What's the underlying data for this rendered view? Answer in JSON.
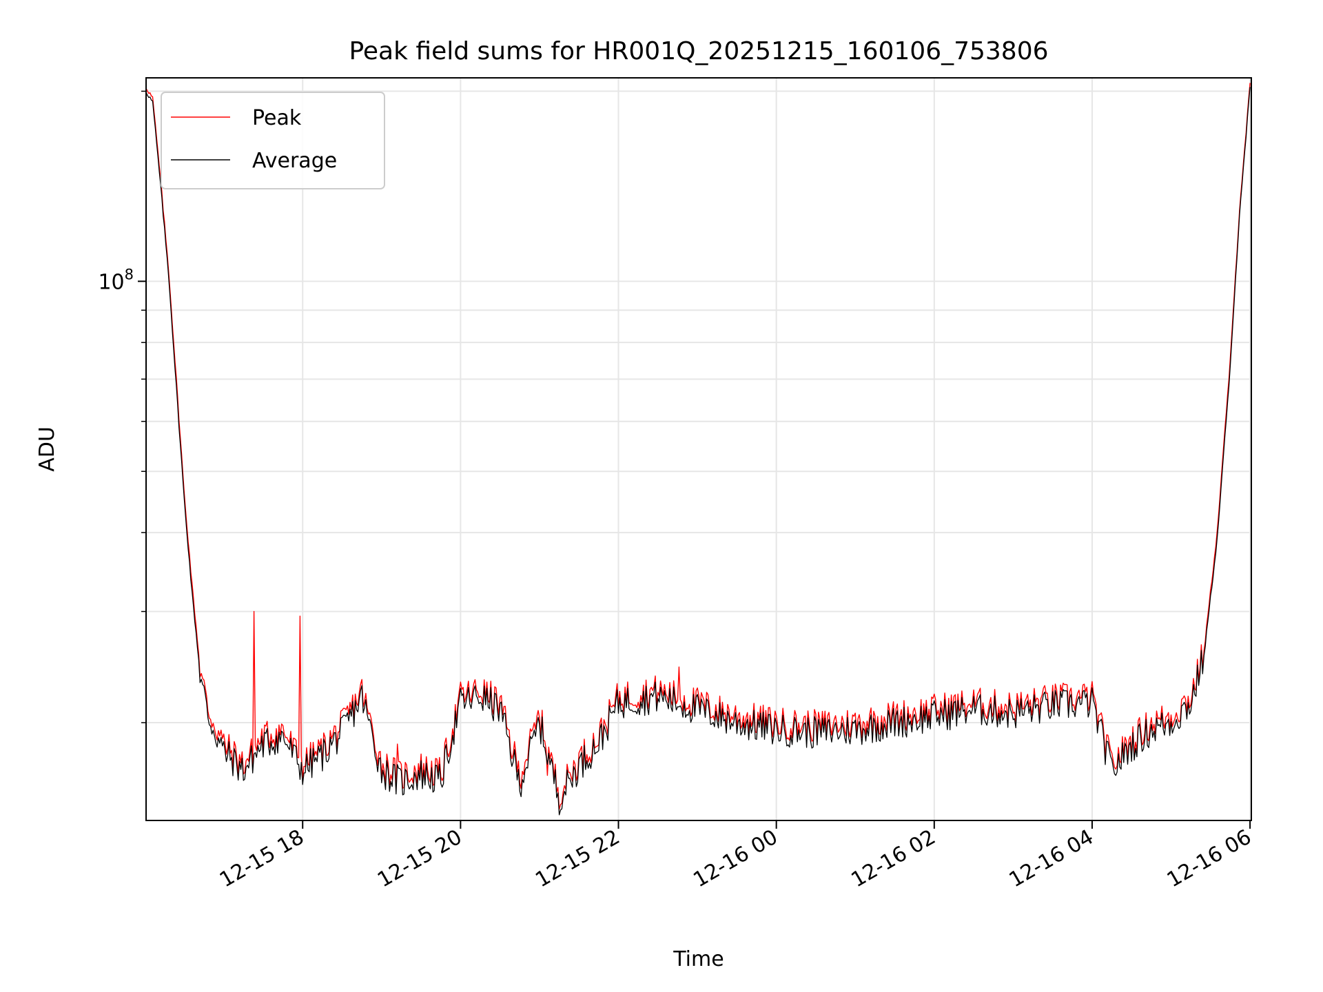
{
  "chart_data": {
    "type": "line",
    "title": "Peak field sums for HR001Q_20251215_160106_753806",
    "xlabel": "Time",
    "ylabel": "ADU",
    "y_scale": "log",
    "ylim": [
      14000000,
      210000000
    ],
    "y_tick_label": {
      "base": "10",
      "exp": "8",
      "value": 100000000
    },
    "x_range": [
      "2025-12-15 16:01",
      "2025-12-16 06:01"
    ],
    "x_ticks": [
      "12-15 18",
      "12-15 20",
      "12-15 22",
      "12-16 00",
      "12-16 02",
      "12-16 04",
      "12-16 06"
    ],
    "grid": true,
    "legend_position": "upper-left",
    "series": [
      {
        "name": "Peak",
        "color": "#ff0000",
        "points": [
          [
            "2025-12-15 16:01",
            203000000.0
          ],
          [
            "2025-12-15 16:06",
            195000000.0
          ],
          [
            "2025-12-15 16:12",
            145000000.0
          ],
          [
            "2025-12-15 16:18",
            105000000.0
          ],
          [
            "2025-12-15 16:24",
            70000000.0
          ],
          [
            "2025-12-15 16:30",
            46000000.0
          ],
          [
            "2025-12-15 16:36",
            33000000.0
          ],
          [
            "2025-12-15 16:42",
            24500000.0
          ],
          [
            "2025-12-15 16:48",
            21000000.0
          ],
          [
            "2025-12-15 17:00",
            18500000.0
          ],
          [
            "2025-12-15 17:15",
            17200000.0
          ],
          [
            "2025-12-15 17:30",
            19000000.0
          ],
          [
            "2025-12-15 17:45",
            19500000.0
          ],
          [
            "2025-12-15 18:00",
            17200000.0
          ],
          [
            "2025-12-15 18:15",
            18200000.0
          ],
          [
            "2025-12-15 18:30",
            19800000.0
          ],
          [
            "2025-12-15 18:45",
            22500000.0
          ],
          [
            "2025-12-15 19:00",
            17200000.0
          ],
          [
            "2025-12-15 19:15",
            16500000.0
          ],
          [
            "2025-12-15 19:30",
            17000000.0
          ],
          [
            "2025-12-15 19:45",
            16600000.0
          ],
          [
            "2025-12-15 20:00",
            22000000.0
          ],
          [
            "2025-12-15 20:15",
            22500000.0
          ],
          [
            "2025-12-15 20:30",
            21500000.0
          ],
          [
            "2025-12-15 20:45",
            16500000.0
          ],
          [
            "2025-12-15 21:00",
            20500000.0
          ],
          [
            "2025-12-15 21:15",
            15500000.0
          ],
          [
            "2025-12-15 21:30",
            17500000.0
          ],
          [
            "2025-12-15 21:45",
            19000000.0
          ],
          [
            "2025-12-15 22:00",
            22000000.0
          ],
          [
            "2025-12-15 22:30",
            22500000.0
          ],
          [
            "2025-12-15 23:00",
            21500000.0
          ],
          [
            "2025-12-15 23:30",
            20500000.0
          ],
          [
            "2025-12-16 00:00",
            20000000.0
          ],
          [
            "2025-12-16 00:30",
            19800000.0
          ],
          [
            "2025-12-16 01:00",
            20000000.0
          ],
          [
            "2025-12-16 01:30",
            20500000.0
          ],
          [
            "2025-12-16 02:00",
            21000000.0
          ],
          [
            "2025-12-16 02:30",
            21500000.0
          ],
          [
            "2025-12-16 03:00",
            21200000.0
          ],
          [
            "2025-12-16 03:30",
            21800000.0
          ],
          [
            "2025-12-16 04:00",
            22000000.0
          ],
          [
            "2025-12-16 04:15",
            17200000.0
          ],
          [
            "2025-12-16 04:30",
            18800000.0
          ],
          [
            "2025-12-16 04:45",
            20000000.0
          ],
          [
            "2025-12-16 05:00",
            20500000.0
          ],
          [
            "2025-12-16 05:15",
            22000000.0
          ],
          [
            "2025-12-16 05:25",
            26000000.0
          ],
          [
            "2025-12-16 05:35",
            40000000.0
          ],
          [
            "2025-12-16 05:45",
            75000000.0
          ],
          [
            "2025-12-16 05:52",
            130000000.0
          ],
          [
            "2025-12-16 06:00",
            205000000.0
          ]
        ],
        "spikes": [
          [
            "2025-12-15 17:23",
            30000000.0
          ],
          [
            "2025-12-15 17:58",
            29500000.0
          ],
          [
            "2025-12-15 19:12",
            18500000.0
          ],
          [
            "2025-12-15 21:06",
            16500000.0
          ],
          [
            "2025-12-15 22:46",
            24500000.0
          ]
        ]
      },
      {
        "name": "Average",
        "color": "#000000",
        "points": [
          [
            "2025-12-15 16:01",
            200000000.0
          ],
          [
            "2025-12-15 16:06",
            192000000.0
          ],
          [
            "2025-12-15 16:12",
            142000000.0
          ],
          [
            "2025-12-15 16:18",
            103000000.0
          ],
          [
            "2025-12-15 16:24",
            68000000.0
          ],
          [
            "2025-12-15 16:30",
            45000000.0
          ],
          [
            "2025-12-15 16:36",
            32000000.0
          ],
          [
            "2025-12-15 16:42",
            24000000.0
          ],
          [
            "2025-12-15 16:48",
            20500000.0
          ],
          [
            "2025-12-15 17:00",
            18000000.0
          ],
          [
            "2025-12-15 17:15",
            16800000.0
          ],
          [
            "2025-12-15 17:30",
            18500000.0
          ],
          [
            "2025-12-15 17:45",
            19000000.0
          ],
          [
            "2025-12-15 18:00",
            16800000.0
          ],
          [
            "2025-12-15 18:15",
            17800000.0
          ],
          [
            "2025-12-15 18:30",
            19300000.0
          ],
          [
            "2025-12-15 18:45",
            22000000.0
          ],
          [
            "2025-12-15 19:00",
            16800000.0
          ],
          [
            "2025-12-15 19:15",
            16100000.0
          ],
          [
            "2025-12-15 19:30",
            16600000.0
          ],
          [
            "2025-12-15 19:45",
            16200000.0
          ],
          [
            "2025-12-15 20:00",
            21500000.0
          ],
          [
            "2025-12-15 20:15",
            22000000.0
          ],
          [
            "2025-12-15 20:30",
            21000000.0
          ],
          [
            "2025-12-15 20:45",
            16000000.0
          ],
          [
            "2025-12-15 21:00",
            20000000.0
          ],
          [
            "2025-12-15 21:15",
            15200000.0
          ],
          [
            "2025-12-15 21:30",
            17100000.0
          ],
          [
            "2025-12-15 21:45",
            18600000.0
          ],
          [
            "2025-12-15 22:00",
            21500000.0
          ],
          [
            "2025-12-15 22:30",
            22000000.0
          ],
          [
            "2025-12-15 23:00",
            21000000.0
          ],
          [
            "2025-12-15 23:30",
            20000000.0
          ],
          [
            "2025-12-16 00:00",
            19500000.0
          ],
          [
            "2025-12-16 00:30",
            19300000.0
          ],
          [
            "2025-12-16 01:00",
            19500000.0
          ],
          [
            "2025-12-16 01:30",
            20000000.0
          ],
          [
            "2025-12-16 02:00",
            20500000.0
          ],
          [
            "2025-12-16 02:30",
            21000000.0
          ],
          [
            "2025-12-16 03:00",
            20700000.0
          ],
          [
            "2025-12-16 03:30",
            21300000.0
          ],
          [
            "2025-12-16 04:00",
            21500000.0
          ],
          [
            "2025-12-16 04:15",
            16800000.0
          ],
          [
            "2025-12-16 04:30",
            18400000.0
          ],
          [
            "2025-12-16 04:45",
            19500000.0
          ],
          [
            "2025-12-16 05:00",
            20000000.0
          ],
          [
            "2025-12-16 05:15",
            21500000.0
          ],
          [
            "2025-12-16 05:25",
            25500000.0
          ],
          [
            "2025-12-16 05:35",
            39000000.0
          ],
          [
            "2025-12-16 05:45",
            73000000.0
          ],
          [
            "2025-12-16 05:52",
            128000000.0
          ],
          [
            "2025-12-16 06:00",
            202000000.0
          ]
        ]
      }
    ]
  }
}
